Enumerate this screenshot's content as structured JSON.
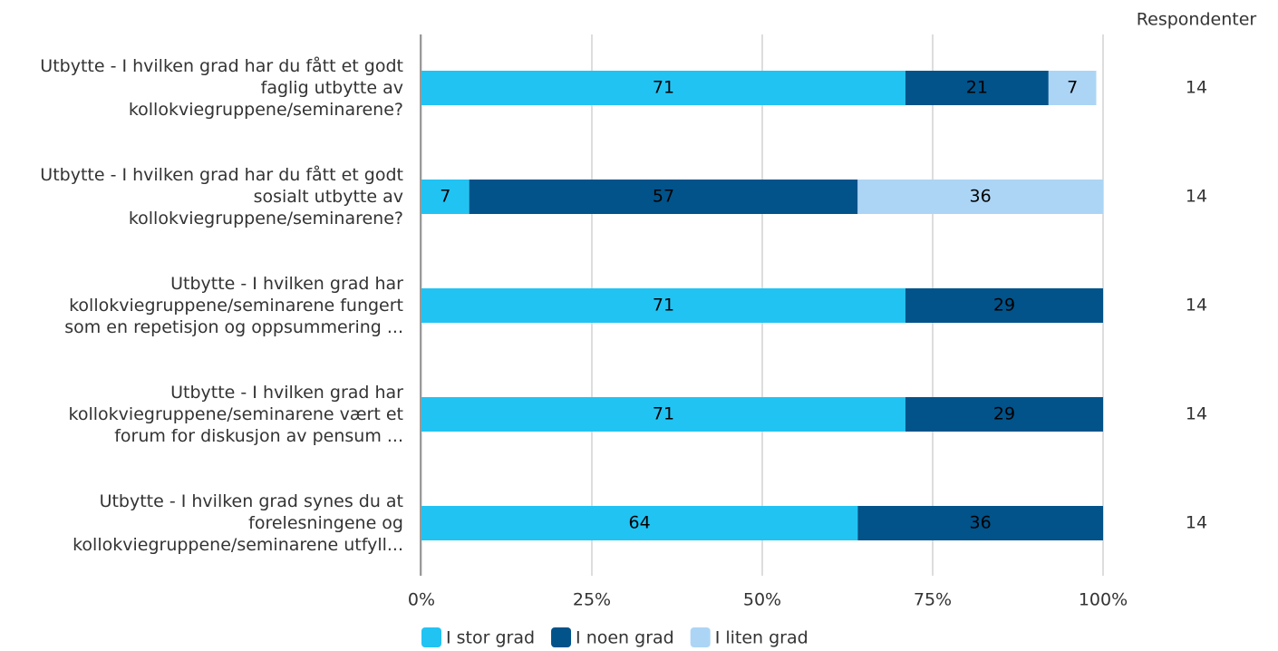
{
  "chart_data": {
    "type": "stacked_bar_horizontal",
    "categories": [
      "Utbytte - I hvilken grad har du fått et godt\nfaglig utbytte av\nkollokviegruppene/seminarene?",
      "Utbytte - I hvilken grad har du fått et godt\nsosialt utbytte av\nkollokviegruppene/seminarene?",
      "Utbytte - I hvilken grad har\nkollokviegruppene/seminarene fungert\nsom en repetisjon og oppsummering ...",
      "Utbytte - I hvilken grad har\nkollokviegruppene/seminarene vært et\nforum for diskusjon av pensum ...",
      "Utbytte - I hvilken grad synes du at\nforelesningene og\nkollokviegruppene/seminarene utfyll..."
    ],
    "series": [
      {
        "name": "I stor grad",
        "color": "#21c3f3",
        "values": [
          71,
          7,
          71,
          71,
          64
        ]
      },
      {
        "name": "I noen grad",
        "color": "#01538a",
        "values": [
          21,
          57,
          29,
          29,
          36
        ]
      },
      {
        "name": "I liten grad",
        "color": "#acd5f5",
        "values": [
          7,
          36,
          null,
          null,
          null
        ]
      }
    ],
    "xlim": [
      0,
      100
    ],
    "xticks": [
      {
        "value": 0,
        "label": "0%"
      },
      {
        "value": 25,
        "label": "25%"
      },
      {
        "value": 50,
        "label": "50%"
      },
      {
        "value": 75,
        "label": "75%"
      },
      {
        "value": 100,
        "label": "100%"
      }
    ],
    "grid": true,
    "respondents": {
      "label": "Respondenter",
      "values": [
        14,
        14,
        14,
        14,
        14
      ]
    }
  }
}
